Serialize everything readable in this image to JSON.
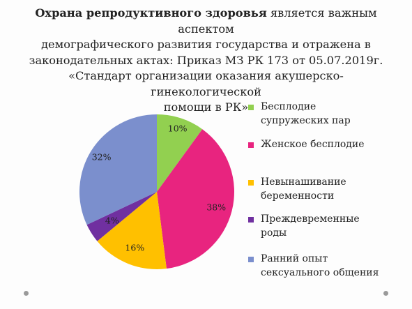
{
  "title": {
    "bold_part": "Охрана репродуктивного здоровья",
    "rest_line1": " является важным аспектом",
    "line2": "демографического развития государства и отражена в",
    "line3": "законодательных актах: Приказ МЗ РК 173 от 05.07.2019г.",
    "line4": "«Стандарт организации оказания акушерско-гинекологической",
    "line5": "помощи в РК»"
  },
  "chart_data": {
    "type": "pie",
    "title": "",
    "start_angle_deg": 0,
    "direction": "clockwise",
    "slices": [
      {
        "label": "Бесплодие супружеских пар",
        "value": 10,
        "value_label": "10%",
        "color": "#92d050"
      },
      {
        "label": "Женское бесплодие",
        "value": 38,
        "value_label": "38%",
        "color": "#e8247f"
      },
      {
        "label": "Невынашивание беременности",
        "value": 16,
        "value_label": "16%",
        "color": "#ffc000"
      },
      {
        "label": "Преждевременные роды",
        "value": 4,
        "value_label": "4%",
        "color": "#7030a0"
      },
      {
        "label": "Ранний опыт сексуального общения",
        "value": 32,
        "value_label": "32%",
        "color": "#7b8fcd"
      }
    ],
    "legend_position": "right"
  },
  "legend": {
    "items": [
      {
        "line1": "Бесплодие",
        "line2": "супружеских пар"
      },
      {
        "line1": "Женское бесплодие",
        "line2": ""
      },
      {
        "line1": "Невынашивание",
        "line2": "беременности"
      },
      {
        "line1": "Преждевременные",
        "line2": "роды"
      },
      {
        "line1": "Ранний опыт",
        "line2": "сексуального общения"
      }
    ]
  },
  "decor": {
    "corner_dot_color": "#9a9a9a"
  }
}
